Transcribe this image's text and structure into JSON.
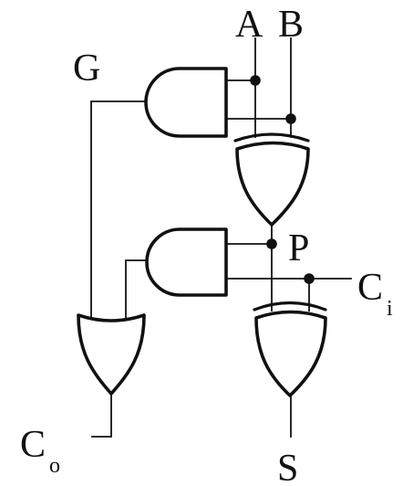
{
  "circuit": {
    "labels": {
      "a": "A",
      "b": "B",
      "g": "G",
      "p": "P",
      "ci_main": "C",
      "ci_sub": "i",
      "co_main": "C",
      "co_sub": "o",
      "s": "S"
    },
    "gates": [
      "and-gate",
      "xor-gate",
      "and-gate",
      "xor-gate",
      "or-gate"
    ],
    "colors": {
      "line": "#111111",
      "background": "#ffffff"
    }
  }
}
